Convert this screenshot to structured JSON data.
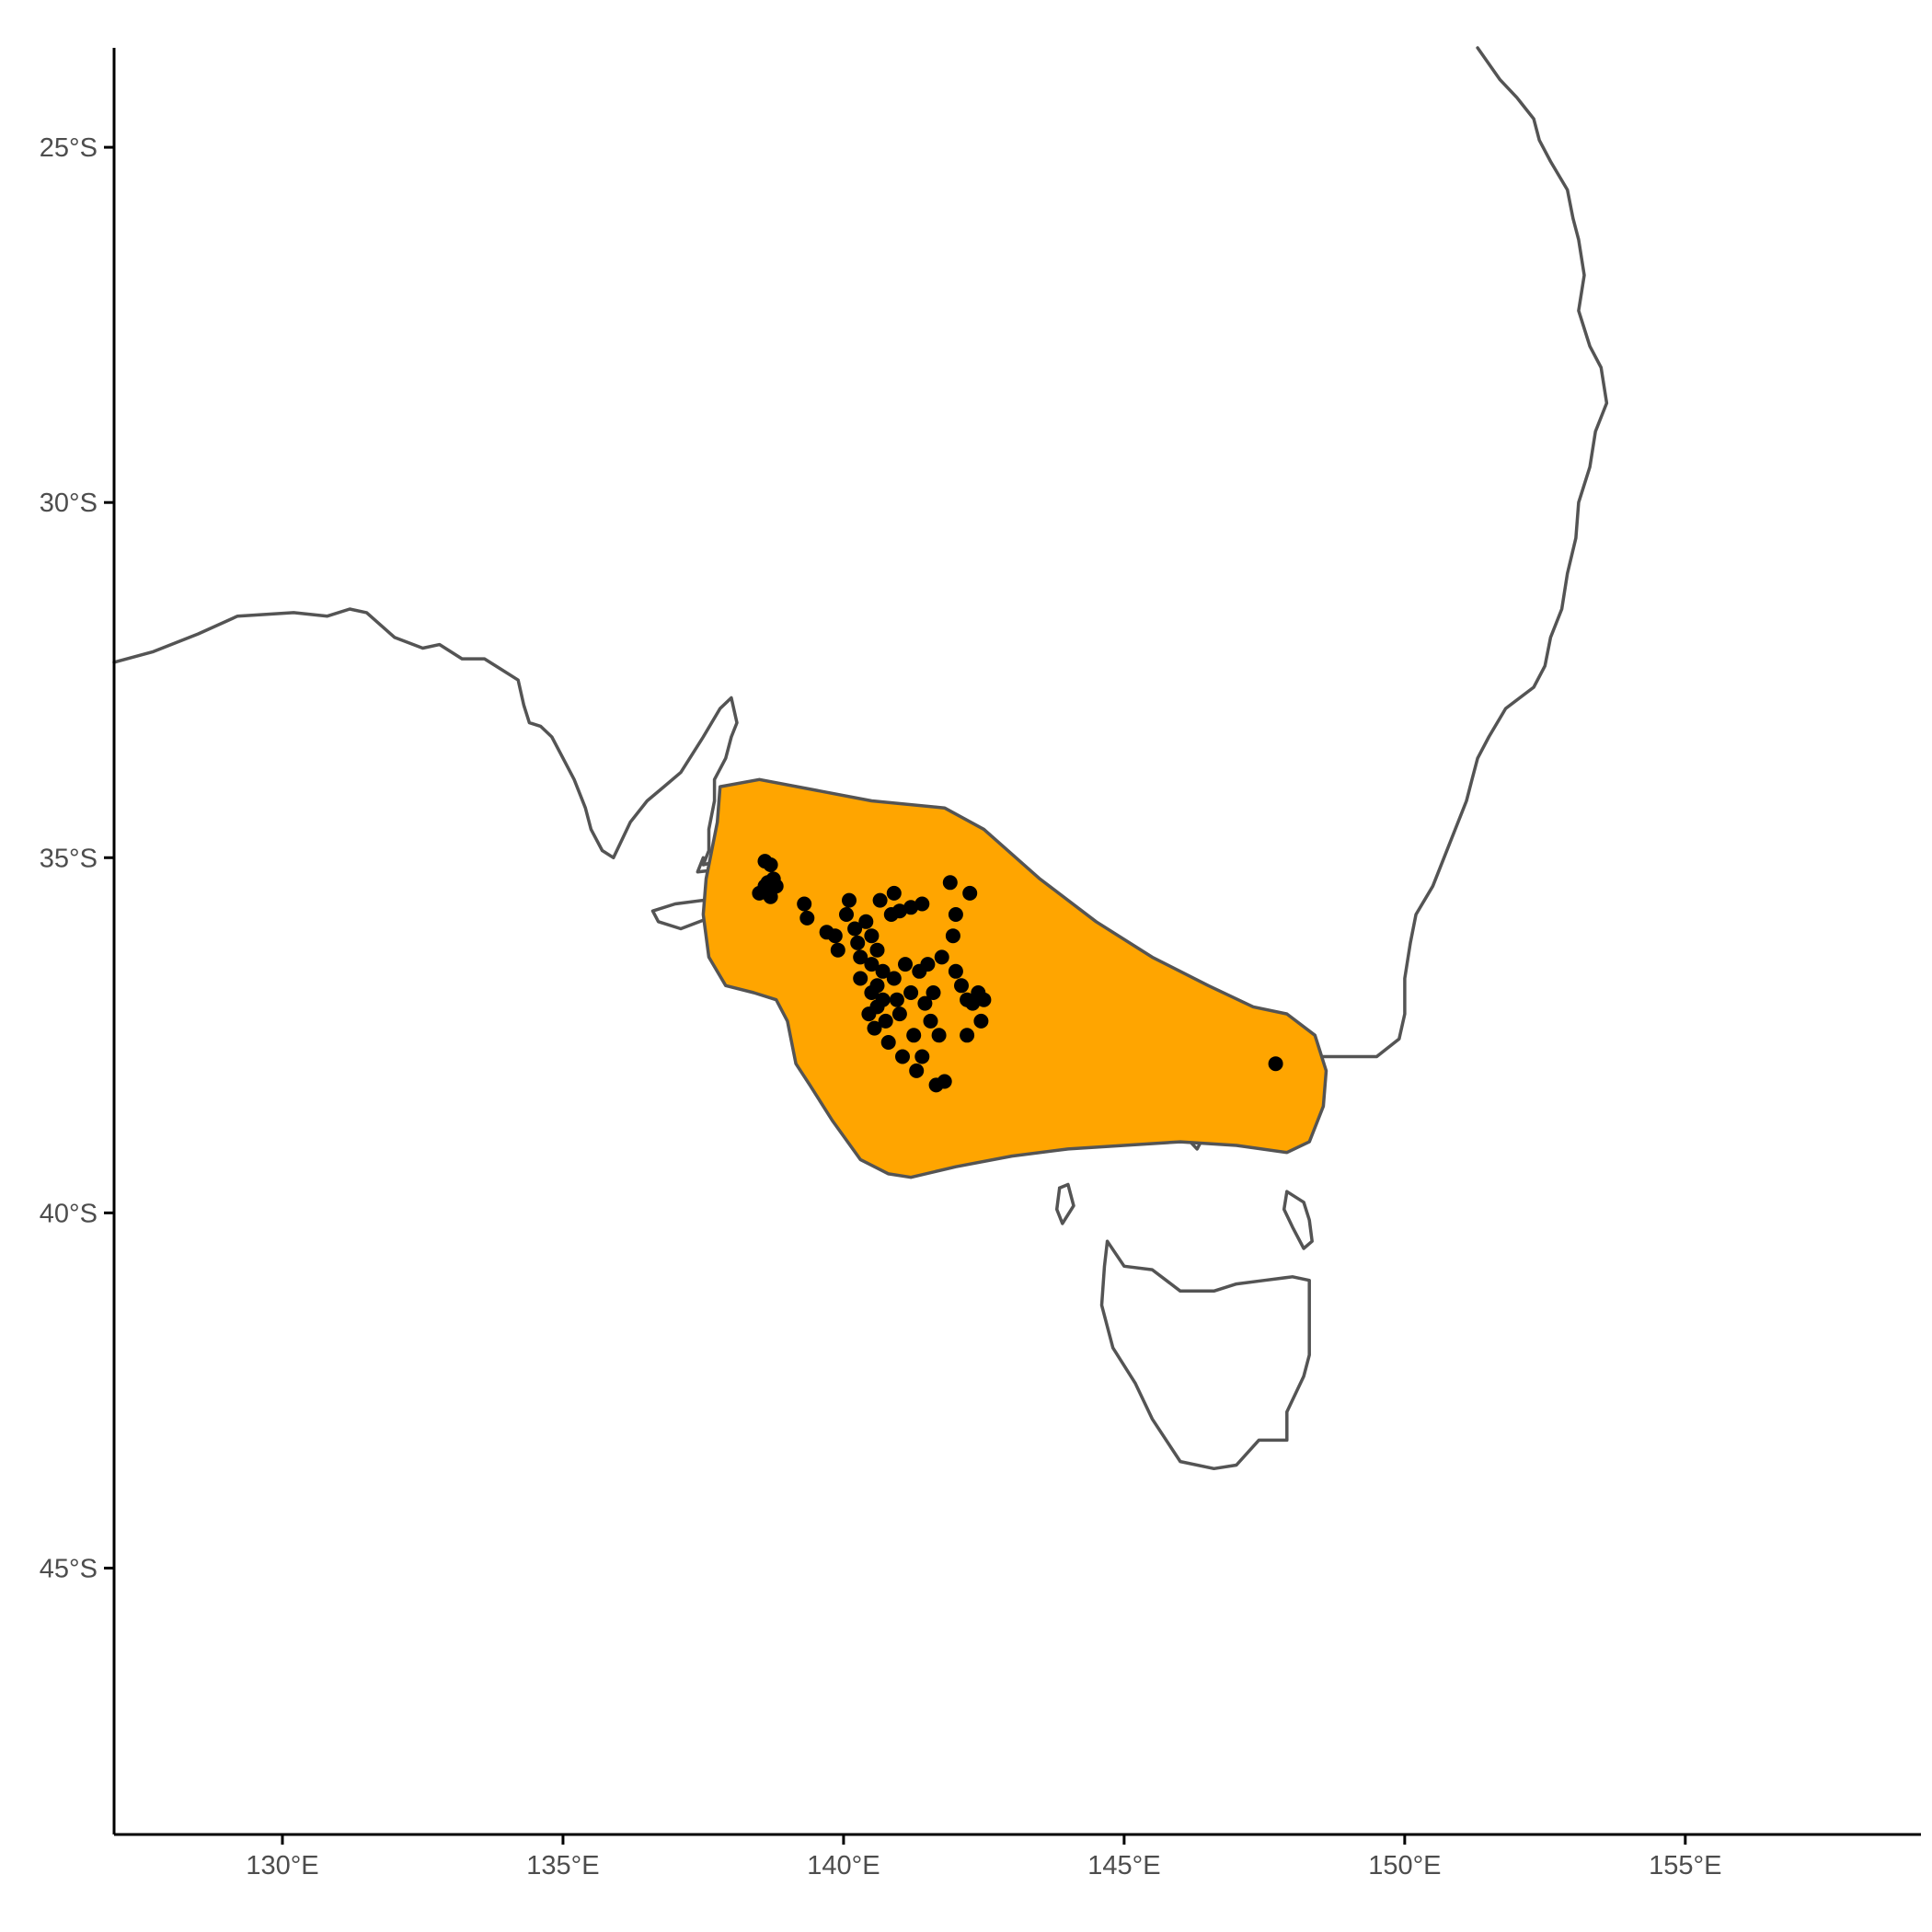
{
  "map": {
    "projection": "equirectangular",
    "lon_range": [
      127.0,
      159.2
    ],
    "lat_range": [
      -48.75,
      -23.6
    ],
    "range_fill_color": "#FFA500",
    "outline_color": "#545454",
    "point_color": "#000000",
    "grid": false
  },
  "axes": {
    "x_ticks": [
      {
        "value": 130,
        "label": "130°E"
      },
      {
        "value": 135,
        "label": "135°E"
      },
      {
        "value": 140,
        "label": "140°E"
      },
      {
        "value": 145,
        "label": "145°E"
      },
      {
        "value": 150,
        "label": "150°E"
      },
      {
        "value": 155,
        "label": "155°E"
      }
    ],
    "y_ticks": [
      {
        "value": -25,
        "label": "25°S"
      },
      {
        "value": -30,
        "label": "30°S"
      },
      {
        "value": -35,
        "label": "35°S"
      },
      {
        "value": -40,
        "label": "40°S"
      },
      {
        "value": -45,
        "label": "45°S"
      }
    ]
  },
  "coastlines": [
    {
      "name": "mainland",
      "coords": [
        [
          127.0,
          -32.25
        ],
        [
          127.7,
          -32.1
        ],
        [
          128.5,
          -31.85
        ],
        [
          129.2,
          -31.6
        ],
        [
          130.2,
          -31.55
        ],
        [
          130.8,
          -31.6
        ],
        [
          131.2,
          -31.5
        ],
        [
          131.5,
          -31.55
        ],
        [
          132.0,
          -31.9
        ],
        [
          132.5,
          -32.05
        ],
        [
          132.8,
          -32.0
        ],
        [
          133.2,
          -32.2
        ],
        [
          133.6,
          -32.2
        ],
        [
          133.9,
          -32.35
        ],
        [
          134.2,
          -32.5
        ],
        [
          134.3,
          -32.85
        ],
        [
          134.4,
          -33.1
        ],
        [
          134.6,
          -33.15
        ],
        [
          134.8,
          -33.3
        ],
        [
          135.0,
          -33.6
        ],
        [
          135.2,
          -33.9
        ],
        [
          135.4,
          -34.3
        ],
        [
          135.5,
          -34.6
        ],
        [
          135.7,
          -34.9
        ],
        [
          135.9,
          -35.0
        ],
        [
          136.2,
          -34.5
        ],
        [
          136.5,
          -34.2
        ],
        [
          136.8,
          -34.0
        ],
        [
          137.1,
          -33.8
        ],
        [
          137.5,
          -33.3
        ],
        [
          137.8,
          -32.9
        ],
        [
          138.0,
          -32.75
        ],
        [
          138.1,
          -33.1
        ],
        [
          138.0,
          -33.3
        ],
        [
          137.9,
          -33.6
        ],
        [
          137.7,
          -33.9
        ],
        [
          137.7,
          -34.2
        ],
        [
          137.6,
          -34.6
        ],
        [
          137.6,
          -34.9
        ],
        [
          137.5,
          -35.1
        ],
        [
          138.0,
          -35.0
        ],
        [
          138.5,
          -35.0
        ],
        [
          138.6,
          -35.3
        ],
        [
          138.3,
          -35.6
        ],
        [
          139.2,
          -35.7
        ],
        [
          139.5,
          -36.0
        ],
        [
          139.8,
          -36.5
        ],
        [
          139.9,
          -36.9
        ],
        [
          140.3,
          -37.6
        ],
        [
          140.8,
          -38.0
        ],
        [
          141.2,
          -38.35
        ],
        [
          141.6,
          -38.4
        ],
        [
          142.2,
          -38.4
        ],
        [
          142.6,
          -38.5
        ],
        [
          143.1,
          -38.7
        ],
        [
          143.6,
          -38.85
        ],
        [
          144.0,
          -38.5
        ],
        [
          144.4,
          -38.3
        ],
        [
          144.7,
          -38.4
        ],
        [
          144.9,
          -38.2
        ],
        [
          145.2,
          -38.4
        ],
        [
          145.5,
          -38.6
        ],
        [
          145.7,
          -38.7
        ],
        [
          146.0,
          -38.85
        ],
        [
          146.3,
          -39.1
        ],
        [
          146.5,
          -38.8
        ],
        [
          146.8,
          -38.6
        ],
        [
          147.3,
          -38.3
        ],
        [
          147.8,
          -37.95
        ],
        [
          148.3,
          -37.8
        ],
        [
          148.9,
          -37.8
        ],
        [
          149.5,
          -37.8
        ],
        [
          149.9,
          -37.55
        ],
        [
          150.0,
          -37.2
        ],
        [
          150.0,
          -36.7
        ],
        [
          150.1,
          -36.2
        ],
        [
          150.2,
          -35.8
        ],
        [
          150.5,
          -35.4
        ],
        [
          150.7,
          -35.0
        ],
        [
          150.9,
          -34.6
        ],
        [
          151.1,
          -34.2
        ],
        [
          151.2,
          -33.9
        ],
        [
          151.3,
          -33.6
        ],
        [
          151.5,
          -33.3
        ],
        [
          151.8,
          -32.9
        ],
        [
          152.3,
          -32.6
        ],
        [
          152.5,
          -32.3
        ],
        [
          152.6,
          -31.9
        ],
        [
          152.8,
          -31.5
        ],
        [
          152.9,
          -31.0
        ],
        [
          153.05,
          -30.5
        ],
        [
          153.1,
          -30.0
        ],
        [
          153.3,
          -29.5
        ],
        [
          153.4,
          -29.0
        ],
        [
          153.6,
          -28.6
        ],
        [
          153.5,
          -28.1
        ],
        [
          153.3,
          -27.8
        ],
        [
          153.1,
          -27.3
        ],
        [
          153.2,
          -26.8
        ],
        [
          153.1,
          -26.3
        ],
        [
          153.0,
          -26.0
        ],
        [
          152.9,
          -25.6
        ],
        [
          152.6,
          -25.2
        ],
        [
          152.4,
          -24.9
        ],
        [
          152.3,
          -24.6
        ],
        [
          152.0,
          -24.3
        ],
        [
          151.7,
          -24.05
        ],
        [
          151.3,
          -23.6
        ]
      ]
    },
    {
      "name": "yorke-peninsula-tip",
      "coords": [
        [
          138.0,
          -35.15
        ],
        [
          137.4,
          -35.2
        ],
        [
          137.5,
          -35.0
        ]
      ]
    },
    {
      "name": "kangaroo-island",
      "coords": [
        [
          136.6,
          -35.75
        ],
        [
          137.0,
          -35.65
        ],
        [
          137.5,
          -35.6
        ],
        [
          137.8,
          -35.65
        ],
        [
          138.1,
          -35.75
        ],
        [
          137.6,
          -35.85
        ],
        [
          137.1,
          -36.0
        ],
        [
          136.7,
          -35.9
        ],
        [
          136.6,
          -35.75
        ]
      ]
    },
    {
      "name": "king-island",
      "coords": [
        [
          143.85,
          -39.65
        ],
        [
          144.0,
          -39.6
        ],
        [
          144.1,
          -39.9
        ],
        [
          143.9,
          -40.15
        ],
        [
          143.8,
          -39.95
        ],
        [
          143.85,
          -39.65
        ]
      ]
    },
    {
      "name": "flinders-island",
      "coords": [
        [
          147.9,
          -39.7
        ],
        [
          148.2,
          -39.85
        ],
        [
          148.3,
          -40.1
        ],
        [
          148.35,
          -40.4
        ],
        [
          148.2,
          -40.5
        ],
        [
          148.0,
          -40.2
        ],
        [
          147.85,
          -39.95
        ],
        [
          147.9,
          -39.7
        ]
      ]
    },
    {
      "name": "tasmania",
      "coords": [
        [
          144.7,
          -40.4
        ],
        [
          145.0,
          -40.75
        ],
        [
          145.5,
          -40.8
        ],
        [
          146.0,
          -41.1
        ],
        [
          146.6,
          -41.1
        ],
        [
          147.0,
          -41.0
        ],
        [
          147.5,
          -40.95
        ],
        [
          148.0,
          -40.9
        ],
        [
          148.3,
          -40.95
        ],
        [
          148.3,
          -41.5
        ],
        [
          148.3,
          -42.0
        ],
        [
          148.2,
          -42.3
        ],
        [
          147.9,
          -42.8
        ],
        [
          147.9,
          -43.2
        ],
        [
          147.4,
          -43.2
        ],
        [
          147.0,
          -43.55
        ],
        [
          146.6,
          -43.6
        ],
        [
          146.0,
          -43.5
        ],
        [
          145.5,
          -42.9
        ],
        [
          145.2,
          -42.4
        ],
        [
          144.8,
          -41.9
        ],
        [
          144.6,
          -41.3
        ],
        [
          144.65,
          -40.75
        ],
        [
          144.7,
          -40.4
        ]
      ]
    }
  ],
  "range_polygon": [
    [
      137.8,
      -34.0
    ],
    [
      138.5,
      -33.9
    ],
    [
      139.5,
      -34.05
    ],
    [
      140.5,
      -34.2
    ],
    [
      141.8,
      -34.3
    ],
    [
      142.5,
      -34.6
    ],
    [
      143.5,
      -35.3
    ],
    [
      144.5,
      -35.9
    ],
    [
      145.5,
      -36.4
    ],
    [
      146.5,
      -36.8
    ],
    [
      147.3,
      -37.1
    ],
    [
      147.9,
      -37.2
    ],
    [
      148.4,
      -37.5
    ],
    [
      148.6,
      -38.0
    ],
    [
      148.55,
      -38.5
    ],
    [
      148.3,
      -39.0
    ],
    [
      147.9,
      -39.15
    ],
    [
      147.0,
      -39.05
    ],
    [
      146.0,
      -39.0
    ],
    [
      145.0,
      -39.05
    ],
    [
      144.0,
      -39.1
    ],
    [
      143.0,
      -39.2
    ],
    [
      142.0,
      -39.35
    ],
    [
      141.2,
      -39.5
    ],
    [
      140.8,
      -39.45
    ],
    [
      140.3,
      -39.25
    ],
    [
      139.8,
      -38.7
    ],
    [
      139.4,
      -38.2
    ],
    [
      139.15,
      -37.9
    ],
    [
      139.0,
      -37.3
    ],
    [
      138.8,
      -37.0
    ],
    [
      138.4,
      -36.9
    ],
    [
      137.9,
      -36.8
    ],
    [
      137.6,
      -36.4
    ],
    [
      137.5,
      -35.8
    ],
    [
      137.55,
      -35.3
    ],
    [
      137.75,
      -34.5
    ],
    [
      137.8,
      -34.0
    ]
  ],
  "occurrences": [
    [
      138.6,
      -35.05
    ],
    [
      138.7,
      -35.1
    ],
    [
      138.75,
      -35.3
    ],
    [
      138.8,
      -35.4
    ],
    [
      138.6,
      -35.4
    ],
    [
      138.5,
      -35.5
    ],
    [
      138.7,
      -35.55
    ],
    [
      138.65,
      -35.35
    ],
    [
      139.3,
      -35.65
    ],
    [
      139.35,
      -35.85
    ],
    [
      139.7,
      -36.05
    ],
    [
      139.85,
      -36.1
    ],
    [
      139.9,
      -36.3
    ],
    [
      140.05,
      -35.8
    ],
    [
      140.1,
      -35.6
    ],
    [
      140.2,
      -36.0
    ],
    [
      140.25,
      -36.2
    ],
    [
      140.3,
      -36.4
    ],
    [
      140.3,
      -36.7
    ],
    [
      140.4,
      -35.9
    ],
    [
      140.5,
      -36.1
    ],
    [
      140.5,
      -36.5
    ],
    [
      140.5,
      -36.9
    ],
    [
      140.45,
      -37.2
    ],
    [
      140.55,
      -37.4
    ],
    [
      140.6,
      -36.8
    ],
    [
      140.6,
      -37.1
    ],
    [
      140.6,
      -36.3
    ],
    [
      140.65,
      -35.6
    ],
    [
      140.7,
      -36.6
    ],
    [
      140.7,
      -37.0
    ],
    [
      140.75,
      -37.3
    ],
    [
      140.8,
      -37.6
    ],
    [
      140.85,
      -35.8
    ],
    [
      140.9,
      -35.5
    ],
    [
      140.9,
      -36.7
    ],
    [
      140.95,
      -37.0
    ],
    [
      141.0,
      -35.75
    ],
    [
      141.0,
      -37.2
    ],
    [
      141.05,
      -37.8
    ],
    [
      141.1,
      -36.5
    ],
    [
      141.2,
      -35.7
    ],
    [
      141.2,
      -36.9
    ],
    [
      141.25,
      -37.5
    ],
    [
      141.3,
      -38.0
    ],
    [
      141.35,
      -36.6
    ],
    [
      141.4,
      -37.8
    ],
    [
      141.4,
      -35.65
    ],
    [
      141.45,
      -37.05
    ],
    [
      141.5,
      -36.5
    ],
    [
      141.55,
      -37.3
    ],
    [
      141.6,
      -36.9
    ],
    [
      141.65,
      -38.2
    ],
    [
      141.7,
      -37.5
    ],
    [
      141.75,
      -36.4
    ],
    [
      141.8,
      -38.15
    ],
    [
      141.9,
      -35.35
    ],
    [
      141.95,
      -36.1
    ],
    [
      142.0,
      -35.8
    ],
    [
      142.0,
      -36.6
    ],
    [
      142.1,
      -36.8
    ],
    [
      142.2,
      -37.0
    ],
    [
      142.25,
      -35.5
    ],
    [
      142.3,
      -37.05
    ],
    [
      142.4,
      -36.9
    ],
    [
      142.5,
      -37.0
    ],
    [
      142.45,
      -37.3
    ],
    [
      142.2,
      -37.5
    ],
    [
      147.7,
      -37.9
    ]
  ]
}
